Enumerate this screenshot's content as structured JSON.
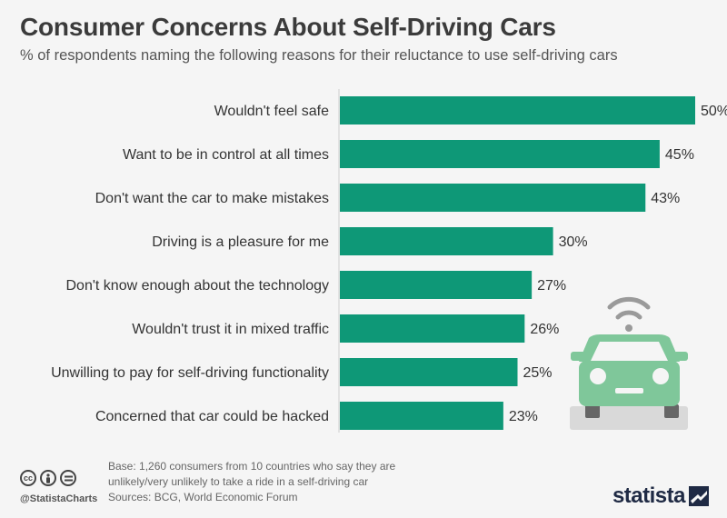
{
  "header": {
    "title": "Consumer Concerns About Self-Driving Cars",
    "subtitle": "% of respondents naming the following reasons for their reluctance to use self-driving cars"
  },
  "chart_data": {
    "type": "bar",
    "orientation": "horizontal",
    "categories": [
      "Wouldn't feel safe",
      "Want to be in control at all times",
      "Don't want the car to make mistakes",
      "Driving is a pleasure for me",
      "Don't know enough about the technology",
      "Wouldn't trust it in mixed traffic",
      "Unwilling to pay for self-driving functionality",
      "Concerned that car could be hacked"
    ],
    "values": [
      50,
      45,
      43,
      30,
      27,
      26,
      25,
      23
    ],
    "value_labels": [
      "50%",
      "45%",
      "43%",
      "30%",
      "27%",
      "26%",
      "25%",
      "23%"
    ],
    "xlim": [
      0,
      50
    ],
    "bar_color": "#0e9877",
    "grid": false
  },
  "illustration": {
    "icon": "connected-car-icon",
    "car_color": "#7fc79a",
    "signal_color": "#9a9a9a"
  },
  "footer": {
    "base_line1": "Base: 1,260 consumers from 10 countries who say they are",
    "base_line2": "unlikely/very unlikely to take a ride in a self-driving car",
    "sources": "Sources: BCG, World Economic Forum",
    "handle": "@StatistaCharts",
    "brand": "statista"
  }
}
